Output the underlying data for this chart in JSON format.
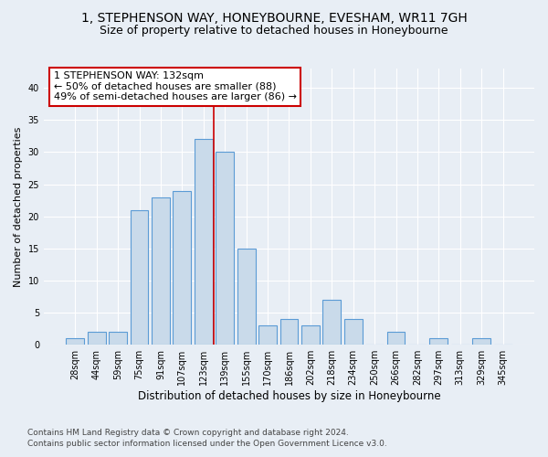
{
  "title1": "1, STEPHENSON WAY, HONEYBOURNE, EVESHAM, WR11 7GH",
  "title2": "Size of property relative to detached houses in Honeybourne",
  "xlabel": "Distribution of detached houses by size in Honeybourne",
  "ylabel": "Number of detached properties",
  "categories": [
    "28sqm",
    "44sqm",
    "59sqm",
    "75sqm",
    "91sqm",
    "107sqm",
    "123sqm",
    "139sqm",
    "155sqm",
    "170sqm",
    "186sqm",
    "202sqm",
    "218sqm",
    "234sqm",
    "250sqm",
    "266sqm",
    "282sqm",
    "297sqm",
    "313sqm",
    "329sqm",
    "345sqm"
  ],
  "values": [
    1,
    2,
    2,
    21,
    23,
    24,
    32,
    30,
    15,
    3,
    4,
    3,
    7,
    4,
    0,
    2,
    0,
    1,
    0,
    1,
    0
  ],
  "bar_color": "#c9daea",
  "bar_edge_color": "#5b9bd5",
  "annotation_text": "1 STEPHENSON WAY: 132sqm\n← 50% of detached houses are smaller (88)\n49% of semi-detached houses are larger (86) →",
  "annotation_box_color": "#ffffff",
  "annotation_border_color": "#cc0000",
  "vline_color": "#cc0000",
  "vline_x": 6.5,
  "ylim": [
    0,
    43
  ],
  "yticks": [
    0,
    5,
    10,
    15,
    20,
    25,
    30,
    35,
    40
  ],
  "background_color": "#e8eef5",
  "plot_background": "#e8eef5",
  "grid_color": "#ffffff",
  "footer1": "Contains HM Land Registry data © Crown copyright and database right 2024.",
  "footer2": "Contains public sector information licensed under the Open Government Licence v3.0.",
  "title_fontsize": 10,
  "subtitle_fontsize": 9,
  "xlabel_fontsize": 8.5,
  "ylabel_fontsize": 8,
  "tick_fontsize": 7,
  "footer_fontsize": 6.5,
  "annotation_fontsize": 8
}
